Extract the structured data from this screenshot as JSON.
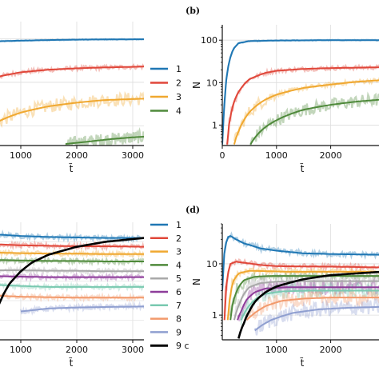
{
  "chart_data": [
    {
      "id": "a",
      "type": "line",
      "panel_label": "",
      "xlabel": "t̃",
      "ylabel": "",
      "xlim": [
        600,
        3200
      ],
      "yscale": "log",
      "ylim": [
        0.35,
        250
      ],
      "xticks": [
        1000,
        2000,
        3000
      ],
      "xtick_labels": [
        "1000",
        "2000",
        "3000"
      ],
      "yticks": [],
      "ytick_labels": [],
      "legend_position": "right",
      "series": [
        {
          "name": "1",
          "color": "#1f77b4",
          "x": [
            600,
            1000,
            1500,
            2000,
            2500,
            3200
          ],
          "y": [
            88,
            91,
            94,
            96,
            97,
            98
          ]
        },
        {
          "name": "2",
          "color": "#e0473a",
          "x": [
            600,
            1000,
            1500,
            2000,
            2500,
            3200
          ],
          "y": [
            13.5,
            17,
            19.5,
            21,
            22,
            23
          ]
        },
        {
          "name": "3",
          "color": "#f0a830",
          "x": [
            600,
            1000,
            1500,
            2000,
            2500,
            3200
          ],
          "y": [
            1.25,
            2.0,
            2.8,
            3.4,
            3.9,
            4.2
          ]
        },
        {
          "name": "4",
          "color": "#4f8a3b",
          "x": [
            1800,
            2200,
            2600,
            3000,
            3200
          ],
          "y": [
            0.38,
            0.43,
            0.49,
            0.54,
            0.56
          ]
        }
      ]
    },
    {
      "id": "b",
      "type": "line",
      "panel_label": "(b)",
      "xlabel": "t̃",
      "ylabel": "N",
      "xlim": [
        0,
        2950
      ],
      "yscale": "log",
      "ylim": [
        0.33,
        230
      ],
      "xticks": [
        0,
        1000,
        2000
      ],
      "xtick_labels": [
        "0",
        "1000",
        "2000"
      ],
      "yticks": [
        1,
        10,
        100
      ],
      "ytick_labels": [
        "1",
        "10",
        "100"
      ],
      "series": [
        {
          "name": "1",
          "color": "#1f77b4",
          "x": [
            0,
            50,
            100,
            200,
            300,
            500,
            1000,
            2000,
            2950
          ],
          "y": [
            0.35,
            4,
            20,
            60,
            85,
            95,
            98,
            100,
            100
          ]
        },
        {
          "name": "2",
          "color": "#e0473a",
          "x": [
            90,
            150,
            200,
            300,
            500,
            800,
            1000,
            1500,
            2000,
            2950
          ],
          "y": [
            0.35,
            1.5,
            3,
            6,
            12,
            17,
            19,
            21,
            22,
            23
          ]
        },
        {
          "name": "3",
          "color": "#f0a830",
          "x": [
            220,
            300,
            400,
            500,
            800,
            1000,
            1500,
            2000,
            2500,
            2950
          ],
          "y": [
            0.35,
            0.7,
            1.3,
            2,
            4,
            5.2,
            7.5,
            9,
            10.5,
            11.5
          ]
        },
        {
          "name": "4",
          "color": "#4f8a3b",
          "x": [
            520,
            600,
            800,
            1000,
            1500,
            2000,
            2500,
            2950
          ],
          "y": [
            0.35,
            0.5,
            0.9,
            1.3,
            2.3,
            3,
            3.6,
            4
          ]
        }
      ]
    },
    {
      "id": "c",
      "type": "line",
      "panel_label": "",
      "xlabel": "t̃",
      "ylabel": "",
      "xlim": [
        600,
        3200
      ],
      "ylim": [
        0,
        240
      ],
      "xticks": [
        1000,
        2000,
        3000
      ],
      "xtick_labels": [
        "1000",
        "2000",
        "3000"
      ],
      "yticks": [],
      "ytick_labels": [],
      "legend_position": "right",
      "series": [
        {
          "name": "1",
          "color": "#1f77b4",
          "x": [
            600,
            1000,
            1500,
            2000,
            2500,
            3200
          ],
          "y": [
            215,
            212,
            210,
            209,
            208,
            208
          ]
        },
        {
          "name": "2",
          "color": "#e0473a",
          "x": [
            600,
            1000,
            1500,
            2000,
            2500,
            3200
          ],
          "y": [
            195,
            193,
            192,
            191,
            191,
            190
          ]
        },
        {
          "name": "3",
          "color": "#f0a830",
          "x": [
            600,
            1000,
            1500,
            2000,
            2500,
            3200
          ],
          "y": [
            178,
            177,
            176,
            176,
            175,
            175
          ]
        },
        {
          "name": "4",
          "color": "#4f8a3b",
          "x": [
            600,
            1000,
            1500,
            2000,
            2500,
            3200
          ],
          "y": [
            163,
            162,
            161,
            161,
            160,
            160
          ]
        },
        {
          "name": "5",
          "color": "#a8a8a8",
          "x": [
            600,
            1000,
            1500,
            2000,
            2500,
            3200
          ],
          "y": [
            142,
            142,
            141,
            141,
            140,
            140
          ]
        },
        {
          "name": "6",
          "color": "#8e3d9a",
          "x": [
            600,
            1000,
            1500,
            2000,
            2500,
            3200
          ],
          "y": [
            130,
            129,
            128,
            128,
            128,
            128
          ]
        },
        {
          "name": "7",
          "color": "#79c9b0",
          "x": [
            600,
            1000,
            1500,
            2000,
            2500,
            3200
          ],
          "y": [
            112,
            110,
            108,
            108,
            108,
            108
          ]
        },
        {
          "name": "8",
          "color": "#f29a6c",
          "x": [
            600,
            1000,
            1500,
            2000,
            2500,
            3200
          ],
          "y": [
            90,
            88,
            87,
            86,
            86,
            86
          ]
        },
        {
          "name": "9",
          "color": "#8f9fd0",
          "x": [
            1000,
            1500,
            2000,
            2500,
            3200
          ],
          "y": [
            58,
            64,
            66,
            67,
            68
          ]
        },
        {
          "name": "9 c",
          "color": "#000000",
          "x": [
            600,
            700,
            800,
            1000,
            1200,
            1500,
            2000,
            2500,
            3200
          ],
          "y": [
            70,
            95,
            115,
            140,
            158,
            174,
            190,
            200,
            208
          ]
        }
      ]
    },
    {
      "id": "d",
      "type": "line",
      "panel_label": "(d)",
      "xlabel": "t̃",
      "ylabel": "N",
      "xlim": [
        0,
        2950
      ],
      "yscale": "log",
      "ylim": [
        0.33,
        60
      ],
      "xticks": [
        1000,
        2000
      ],
      "xtick_labels": [
        "1000",
        "2000"
      ],
      "yticks": [
        1,
        10
      ],
      "ytick_labels": [
        "1",
        "10"
      ],
      "series": [
        {
          "name": "1",
          "color": "#1f77b4",
          "x": [
            0,
            50,
            100,
            150,
            250,
            400,
            700,
            1000,
            1500,
            2000,
            2950
          ],
          "y": [
            3,
            20,
            33,
            35,
            30,
            25,
            20,
            18,
            16,
            15.5,
            15
          ]
        },
        {
          "name": "2",
          "color": "#e0473a",
          "x": [
            40,
            100,
            150,
            250,
            400,
            700,
            1000,
            2000,
            2950
          ],
          "y": [
            0.8,
            6,
            10,
            11,
            10.5,
            9.5,
            9,
            8.8,
            8.5
          ]
        },
        {
          "name": "3",
          "color": "#f0a830",
          "x": [
            100,
            150,
            200,
            300,
            500,
            800,
            1200,
            2000,
            2950
          ],
          "y": [
            0.8,
            2.5,
            4.5,
            6.5,
            7.3,
            7.2,
            7,
            7,
            7
          ]
        },
        {
          "name": "4",
          "color": "#4f8a3b",
          "x": [
            150,
            200,
            300,
            400,
            600,
            900,
            1500,
            2950
          ],
          "y": [
            0.8,
            1.8,
            3.5,
            4.8,
            5.6,
            5.8,
            5.8,
            5.8
          ]
        },
        {
          "name": "5",
          "color": "#a8a8a8",
          "x": [
            220,
            300,
            400,
            500,
            700,
            1000,
            1500,
            2950
          ],
          "y": [
            0.8,
            1.5,
            2.6,
            3.5,
            4.2,
            4.5,
            4.6,
            4.6
          ]
        },
        {
          "name": "6",
          "color": "#8e3d9a",
          "x": [
            280,
            350,
            450,
            600,
            800,
            1200,
            2950
          ],
          "y": [
            0.8,
            1.2,
            2,
            2.8,
            3.3,
            3.5,
            3.5
          ]
        },
        {
          "name": "7",
          "color": "#79c9b0",
          "x": [
            350,
            450,
            600,
            800,
            1100,
            1600,
            2950
          ],
          "y": [
            0.8,
            1.3,
            2,
            2.6,
            2.9,
            3,
            3
          ]
        },
        {
          "name": "8",
          "color": "#f29a6c",
          "x": [
            450,
            600,
            800,
            1100,
            1500,
            2000,
            2950
          ],
          "y": [
            0.8,
            1.1,
            1.5,
            1.9,
            2.1,
            2.2,
            2.2
          ]
        },
        {
          "name": "9",
          "color": "#8f9fd0",
          "x": [
            600,
            900,
            1300,
            1800,
            2400,
            2950
          ],
          "y": [
            0.5,
            0.8,
            1.1,
            1.3,
            1.4,
            1.45
          ]
        },
        {
          "name": "9 c",
          "color": "#000000",
          "x": [
            300,
            400,
            500,
            600,
            800,
            1000,
            1500,
            2000,
            2950
          ],
          "y": [
            0.35,
            0.7,
            1.2,
            1.8,
            2.8,
            3.6,
            5,
            6,
            7
          ]
        }
      ]
    }
  ],
  "legends": {
    "top": [
      "1",
      "2",
      "3",
      "4"
    ],
    "bottom": [
      "1",
      "2",
      "3",
      "4",
      "5",
      "6",
      "7",
      "8",
      "9",
      "9 c"
    ]
  }
}
